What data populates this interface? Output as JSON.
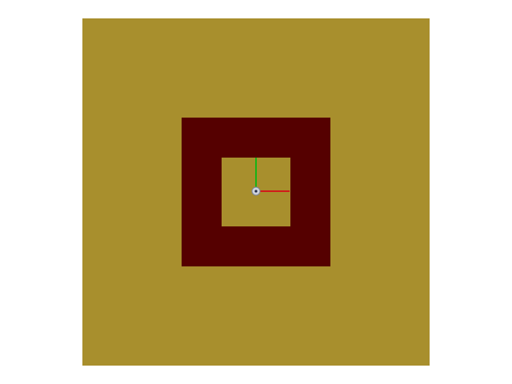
{
  "scene": {
    "background_color": "#ffffff",
    "outer_plane_color": "#a88f2d",
    "frame_color": "#550000",
    "inner_square_color": "#a88f2d"
  },
  "gizmo": {
    "x_axis_color": "#d11a1a",
    "y_axis_color": "#17b317",
    "origin_icon": "origin-marker-icon"
  }
}
